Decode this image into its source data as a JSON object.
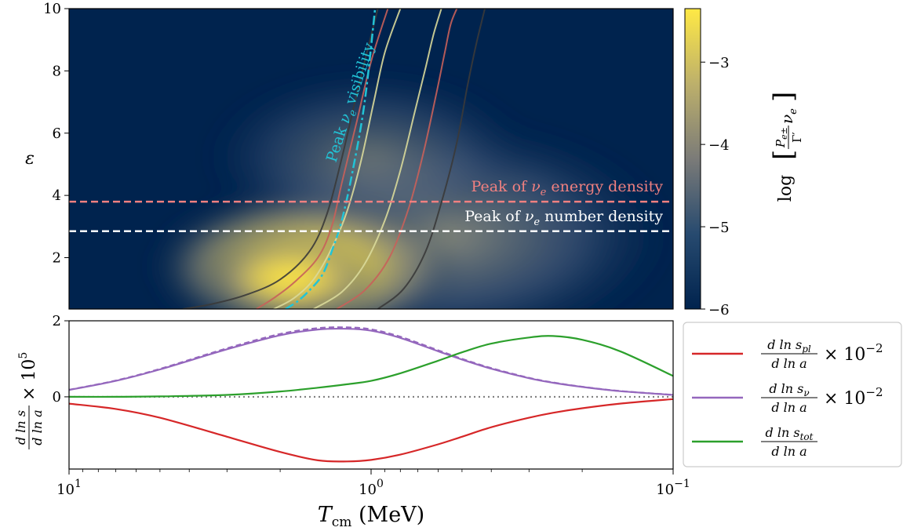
{
  "colors": {
    "heat_low": "#00234e",
    "heat_mid": "#7b7b78",
    "heat_high": "#ffe945",
    "contour_dark": "#3a3a3a",
    "contour_red": "#c8605a",
    "contour_light": "#d9d99a",
    "visibility": "#22c3d6",
    "energy_line": "#f08080",
    "number_line": "#ffffff",
    "pl": "#d62728",
    "nu": "#9467bd",
    "tot": "#2ca02c",
    "zero": "#808080"
  },
  "chart_data": [
    {
      "type": "heatmap",
      "xscale": "log",
      "xlim": [
        10,
        0.1
      ],
      "ylim": [
        0.35,
        10
      ],
      "ylabel": "ε",
      "y_ticks": [
        "2",
        "4",
        "6",
        "8",
        "10"
      ],
      "y_tick_values": [
        2,
        4,
        6,
        8,
        10
      ],
      "colorbar": {
        "label_parts": [
          "log",
          "P",
          "e±",
          "Γ′",
          "ν",
          "e"
        ],
        "ticks": [
          "−6",
          "−5",
          "−4",
          "−3"
        ],
        "tick_values": [
          -6,
          -5,
          -4,
          -3
        ],
        "range": [
          -6,
          -2.35
        ],
        "colormap": "cividis"
      },
      "hlines": [
        {
          "y": 3.8,
          "label_prefix": "Peak of ",
          "nu": "ν",
          "sub": "e",
          "label_suffix": " energy density",
          "color": "#f08080"
        },
        {
          "y": 2.85,
          "label_prefix": "Peak of ",
          "nu": "ν",
          "sub": "e",
          "label_suffix": " number density",
          "color": "#ffffff"
        }
      ],
      "visibility_curve": {
        "label_prefix": "Peak ",
        "nu": "ν",
        "sub": "e",
        "label_suffix": " visibility",
        "x": [
          1.92,
          1.75,
          1.6,
          1.45,
          1.35,
          1.25,
          1.15,
          1.05,
          0.97
        ],
        "y": [
          0.35,
          0.6,
          0.95,
          1.45,
          2.2,
          3.2,
          4.8,
          7.0,
          10.0
        ]
      },
      "contours": [
        {
          "color": "dark",
          "x": [
            4.2,
            3.4,
            2.6,
            2.0,
            1.6,
            1.4,
            1.25,
            1.1,
            0.95
          ],
          "y": [
            0.35,
            0.5,
            0.8,
            1.3,
            2.2,
            3.4,
            5.2,
            7.5,
            10.0
          ]
        },
        {
          "color": "red",
          "x": [
            2.4,
            2.1,
            1.8,
            1.5,
            1.35,
            1.25,
            1.12,
            1.0,
            0.88
          ],
          "y": [
            0.35,
            0.7,
            1.2,
            2.0,
            3.0,
            4.4,
            6.3,
            8.3,
            10.0
          ]
        },
        {
          "color": "light",
          "x": [
            2.1,
            1.8,
            1.55,
            1.35,
            1.2,
            1.08,
            0.98,
            0.9,
            0.8
          ],
          "y": [
            0.35,
            0.7,
            1.3,
            2.3,
            3.5,
            5.1,
            7.0,
            8.6,
            10.0
          ]
        },
        {
          "color": "light",
          "x": [
            1.55,
            1.25,
            1.05,
            0.9,
            0.8,
            0.72,
            0.66,
            0.62,
            0.585
          ],
          "y": [
            0.35,
            0.9,
            1.8,
            3.2,
            4.8,
            6.6,
            8.1,
            9.2,
            10.0
          ]
        },
        {
          "color": "red",
          "x": [
            1.3,
            1.05,
            0.87,
            0.75,
            0.67,
            0.61,
            0.57,
            0.545,
            0.52
          ],
          "y": [
            0.35,
            0.95,
            2.0,
            3.6,
            5.4,
            7.2,
            8.6,
            9.5,
            10.0
          ]
        },
        {
          "color": "dark",
          "x": [
            0.95,
            0.78,
            0.66,
            0.58,
            0.52,
            0.48,
            0.45,
            0.43,
            0.42
          ],
          "y": [
            0.35,
            1.0,
            2.2,
            3.9,
            5.7,
            7.5,
            8.8,
            9.6,
            10.0
          ]
        }
      ]
    },
    {
      "type": "line",
      "xscale": "log",
      "xlim": [
        10,
        0.1
      ],
      "ylim": [
        -1.9,
        2.0
      ],
      "xlabel": "T",
      "xlabel_sub": "cm",
      "xlabel_unit": " (MeV)",
      "ylabel": "d ln s / d ln a × 10⁵",
      "ylabel_parts": [
        "d ln s",
        "d ln a",
        "× 10",
        "5"
      ],
      "y_ticks": [
        "0",
        "2"
      ],
      "y_tick_values": [
        0,
        2
      ],
      "x_ticks": [
        {
          "value": 10,
          "base": "10",
          "exp": "1"
        },
        {
          "value": 1,
          "base": "10",
          "exp": "0"
        },
        {
          "value": 0.1,
          "base": "10",
          "exp": "−1"
        }
      ],
      "x": [
        10,
        7,
        5,
        3,
        2,
        1.5,
        1.2,
        1.0,
        0.8,
        0.6,
        0.5,
        0.4,
        0.3,
        0.25,
        0.2,
        0.15,
        0.1
      ],
      "series": [
        {
          "key": "pl",
          "color": "#d62728",
          "dashed_twin": false,
          "values": [
            -0.18,
            -0.32,
            -0.55,
            -1.05,
            -1.45,
            -1.67,
            -1.7,
            -1.66,
            -1.52,
            -1.25,
            -1.05,
            -0.8,
            -0.55,
            -0.42,
            -0.3,
            -0.18,
            -0.06
          ]
        },
        {
          "key": "nu",
          "color": "#9467bd",
          "dashed_twin": true,
          "values": [
            0.18,
            0.42,
            0.72,
            1.25,
            1.62,
            1.77,
            1.79,
            1.74,
            1.55,
            1.2,
            0.98,
            0.74,
            0.49,
            0.37,
            0.26,
            0.15,
            0.05
          ]
        },
        {
          "key": "tot",
          "color": "#2ca02c",
          "dashed_twin": false,
          "values": [
            0.0,
            0.0,
            0.01,
            0.05,
            0.14,
            0.24,
            0.33,
            0.42,
            0.62,
            0.95,
            1.17,
            1.4,
            1.56,
            1.6,
            1.5,
            1.2,
            0.55
          ]
        }
      ],
      "legend": {
        "placement": "right",
        "entries": [
          {
            "key": "pl",
            "num": "d ln s",
            "num_sub": "pl",
            "den": "d ln a",
            "factor": "× 10",
            "exp": "−2"
          },
          {
            "key": "nu",
            "num": "d ln s",
            "num_sub": "ν",
            "den": "d ln a",
            "factor": "× 10",
            "exp": "−2"
          },
          {
            "key": "tot",
            "num": "d ln s",
            "num_sub": "tot",
            "den": "d ln a",
            "factor": "",
            "exp": ""
          }
        ]
      }
    }
  ]
}
